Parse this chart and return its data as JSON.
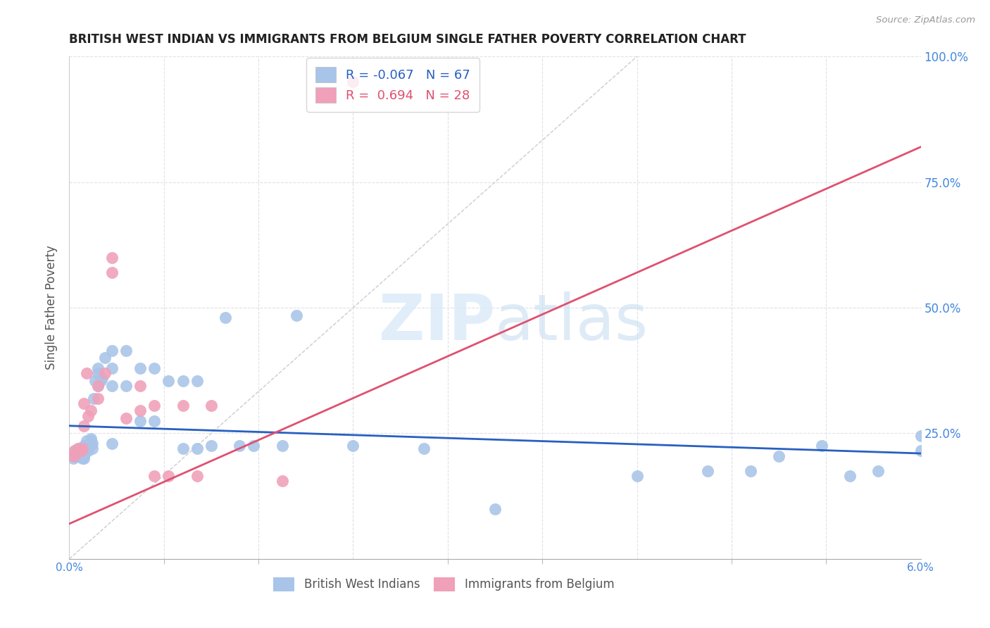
{
  "title": "BRITISH WEST INDIAN VS IMMIGRANTS FROM BELGIUM SINGLE FATHER POVERTY CORRELATION CHART",
  "source": "Source: ZipAtlas.com",
  "ylabel": "Single Father Poverty",
  "xlim": [
    0.0,
    0.06
  ],
  "ylim": [
    0.0,
    1.0
  ],
  "xtick_vals": [
    0.0,
    0.006667,
    0.013333,
    0.02,
    0.026667,
    0.033333,
    0.04,
    0.046667,
    0.053333,
    0.06
  ],
  "ytick_vals": [
    0.0,
    0.25,
    0.5,
    0.75,
    1.0
  ],
  "right_ytick_labels": [
    "",
    "25.0%",
    "50.0%",
    "75.0%",
    "100.0%"
  ],
  "blue_R": -0.067,
  "blue_N": 67,
  "pink_R": 0.694,
  "pink_N": 28,
  "blue_color": "#a8c4e8",
  "pink_color": "#f0a0b8",
  "blue_line_color": "#2860c0",
  "pink_line_color": "#e05070",
  "blue_scatter_x": [
    0.0003,
    0.0004,
    0.0005,
    0.0005,
    0.0006,
    0.0006,
    0.0007,
    0.0007,
    0.0008,
    0.0008,
    0.0009,
    0.0009,
    0.001,
    0.001,
    0.001,
    0.001,
    0.001,
    0.0012,
    0.0012,
    0.0013,
    0.0013,
    0.0014,
    0.0015,
    0.0015,
    0.0016,
    0.0016,
    0.0017,
    0.0018,
    0.002,
    0.002,
    0.002,
    0.0022,
    0.0023,
    0.0025,
    0.003,
    0.003,
    0.003,
    0.003,
    0.004,
    0.004,
    0.005,
    0.005,
    0.006,
    0.006,
    0.007,
    0.008,
    0.008,
    0.009,
    0.009,
    0.01,
    0.011,
    0.012,
    0.013,
    0.015,
    0.016,
    0.02,
    0.025,
    0.03,
    0.04,
    0.045,
    0.048,
    0.05,
    0.053,
    0.055,
    0.057,
    0.06,
    0.06
  ],
  "blue_scatter_y": [
    0.2,
    0.215,
    0.21,
    0.205,
    0.215,
    0.22,
    0.215,
    0.205,
    0.215,
    0.22,
    0.215,
    0.2,
    0.225,
    0.215,
    0.21,
    0.205,
    0.2,
    0.235,
    0.225,
    0.22,
    0.215,
    0.225,
    0.235,
    0.24,
    0.23,
    0.22,
    0.32,
    0.355,
    0.38,
    0.37,
    0.345,
    0.355,
    0.36,
    0.4,
    0.415,
    0.38,
    0.345,
    0.23,
    0.415,
    0.345,
    0.38,
    0.275,
    0.38,
    0.275,
    0.355,
    0.355,
    0.22,
    0.355,
    0.22,
    0.225,
    0.48,
    0.225,
    0.225,
    0.225,
    0.485,
    0.225,
    0.22,
    0.1,
    0.165,
    0.175,
    0.175,
    0.205,
    0.225,
    0.165,
    0.175,
    0.215,
    0.245
  ],
  "pink_scatter_x": [
    0.0003,
    0.0004,
    0.0005,
    0.0006,
    0.0007,
    0.0008,
    0.0009,
    0.001,
    0.001,
    0.0012,
    0.0013,
    0.0015,
    0.002,
    0.002,
    0.0025,
    0.003,
    0.003,
    0.004,
    0.005,
    0.005,
    0.006,
    0.006,
    0.007,
    0.008,
    0.009,
    0.01,
    0.015,
    0.02
  ],
  "pink_scatter_y": [
    0.205,
    0.215,
    0.21,
    0.22,
    0.215,
    0.215,
    0.22,
    0.31,
    0.265,
    0.37,
    0.285,
    0.295,
    0.345,
    0.32,
    0.37,
    0.6,
    0.57,
    0.28,
    0.345,
    0.295,
    0.305,
    0.165,
    0.165,
    0.305,
    0.165,
    0.305,
    0.155,
    0.95
  ],
  "blue_trend_x0": 0.0,
  "blue_trend_x1": 0.06,
  "blue_trend_y0": 0.265,
  "blue_trend_y1": 0.21,
  "pink_trend_x0": 0.0,
  "pink_trend_x1": 0.06,
  "pink_trend_y0": 0.07,
  "pink_trend_y1": 0.82,
  "ref_line_x0": 0.0,
  "ref_line_x1": 0.04,
  "ref_line_y0": 0.0,
  "ref_line_y1": 1.0,
  "watermark_zip": "ZIP",
  "watermark_atlas": "atlas",
  "background_color": "#ffffff",
  "grid_color": "#e0e0e8",
  "title_color": "#222222",
  "axis_label_color": "#555555",
  "right_tick_color": "#4488dd",
  "legend_blue_label_r": "R = -0.067",
  "legend_blue_label_n": "N = 67",
  "legend_pink_label_r": "R =  0.694",
  "legend_pink_label_n": "N = 28",
  "bottom_legend_blue": "British West Indians",
  "bottom_legend_pink": "Immigrants from Belgium"
}
